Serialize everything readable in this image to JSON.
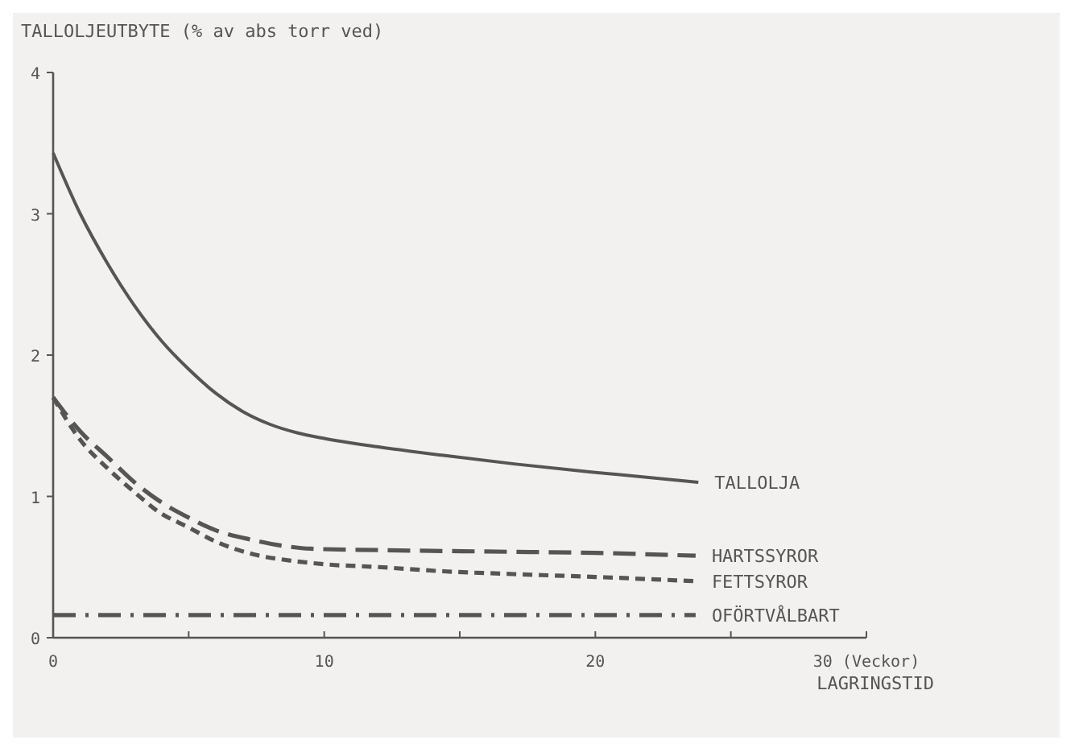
{
  "chart_data": {
    "type": "line",
    "ylabel": "TALLOLJEUTBYTE (% av abs torr ved)",
    "xlabel": "LAGRINGSTID",
    "xlim": [
      0,
      30
    ],
    "ylim": [
      0,
      4
    ],
    "xticks": [
      0,
      {
        "value": 5,
        "label": null
      },
      10,
      {
        "value": 15,
        "label": null
      },
      20,
      {
        "value": 25,
        "label": null
      },
      {
        "value": 30,
        "label": "30 (Veckor)"
      }
    ],
    "yticks": [
      0,
      1,
      2,
      3,
      4
    ],
    "grid": false,
    "marker": "none",
    "series": [
      {
        "name": "TALLOLJA",
        "color": "#555555",
        "line_style": "solid",
        "x": [
          0,
          1,
          2,
          3,
          4,
          5,
          6,
          7,
          8,
          9,
          10,
          12,
          14.4,
          17,
          20,
          23.8
        ],
        "values": [
          3.43,
          3.0,
          2.65,
          2.35,
          2.1,
          1.9,
          1.73,
          1.6,
          1.51,
          1.45,
          1.41,
          1.35,
          1.29,
          1.23,
          1.17,
          1.1
        ]
      },
      {
        "name": "HARTSSYROR",
        "color": "#555555",
        "line_style": "longdash",
        "x": [
          0,
          1,
          2,
          3,
          3.9,
          5,
          6,
          7.4,
          8.5,
          9.5,
          12,
          16,
          20,
          23.7
        ],
        "values": [
          1.7,
          1.46,
          1.28,
          1.1,
          0.97,
          0.85,
          0.76,
          0.69,
          0.65,
          0.63,
          0.62,
          0.61,
          0.6,
          0.58
        ]
      },
      {
        "name": "FETTSYROR",
        "color": "#555555",
        "line_style": "dashed",
        "x": [
          0,
          1,
          2,
          3,
          3.9,
          5,
          6,
          7.4,
          9,
          10,
          12,
          14.4,
          17,
          20,
          23.7
        ],
        "values": [
          1.7,
          1.4,
          1.2,
          1.03,
          0.89,
          0.78,
          0.68,
          0.59,
          0.54,
          0.52,
          0.5,
          0.47,
          0.45,
          0.43,
          0.4
        ]
      },
      {
        "name": "OFÖRTVÅLBART",
        "color": "#555555",
        "line_style": "dashdot",
        "x": [
          0,
          23.7
        ],
        "values": [
          0.16,
          0.16
        ]
      }
    ]
  }
}
